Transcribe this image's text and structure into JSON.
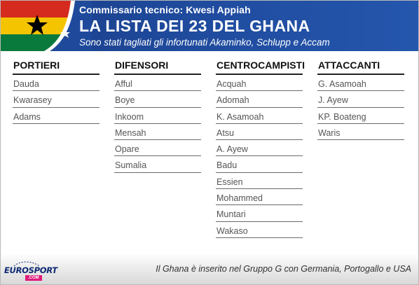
{
  "header": {
    "coach": "Commissario tecnico: Kwesi Appiah",
    "title": "LA LISTA DEI 23 DEL GHANA",
    "subtitle": "Sono stati tagliati gli infortunati Akaminko, Schlupp e Accam",
    "flag_colors": {
      "red": "#d52b1e",
      "yellow": "#f5c400",
      "green": "#0a7a3c",
      "star": "#000000"
    },
    "background": "#1f4a9c"
  },
  "columns": [
    {
      "title": "PORTIERI",
      "players": [
        "Dauda",
        "Kwarasey",
        "Adams"
      ]
    },
    {
      "title": "DIFENSORI",
      "players": [
        "Afful",
        "Boye",
        "Inkoom",
        "Mensah",
        "Opare",
        "Sumalia"
      ]
    },
    {
      "title": "CENTROCAMPISTI",
      "players": [
        "Acquah",
        "Adomah",
        "K. Asamoah",
        "Atsu",
        "A. Ayew",
        "Badu",
        "Essien",
        "Mohammed",
        "Muntari",
        "Wakaso"
      ]
    },
    {
      "title": "ATTACCANTI",
      "players": [
        "G. Asamoah",
        "J. Ayew",
        "KP. Boateng",
        "Waris"
      ]
    }
  ],
  "footer": {
    "logo_euro": "EURO",
    "logo_sport": "SPORT",
    "logo_dotcom": ".COM",
    "note": "Il Ghana è inserito nel Gruppo G con Germania, Portogallo e USA"
  }
}
